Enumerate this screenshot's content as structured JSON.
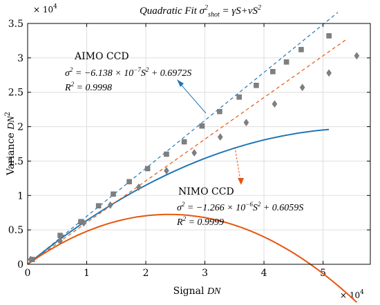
{
  "chart_data": {
    "type": "scatter",
    "title": {
      "plain": "Quadratic Fit ",
      "sigma": "σ",
      "sup": "2",
      "sub": "shot",
      "rest": " = γS+νS",
      "rest_sup": "2"
    },
    "xlabel": {
      "plain": "Signal ",
      "italic": "DN"
    },
    "ylabel": {
      "plain": "Variance ",
      "italic": "DN",
      "sup": "2"
    },
    "x_exponent": {
      "base": "× 10",
      "sup": "4"
    },
    "y_exponent": {
      "base": "× 10",
      "sup": "4"
    },
    "xlim": [
      0,
      5.8
    ],
    "ylim": [
      0,
      3.5
    ],
    "x_ticks": [
      0,
      1,
      2,
      3,
      4,
      5
    ],
    "y_ticks": [
      0,
      0.5,
      1,
      1.5,
      2,
      2.5,
      3,
      3.5
    ],
    "x_tick_labels": [
      "0",
      "1",
      "2",
      "3",
      "4",
      "5"
    ],
    "y_tick_labels": [
      "0",
      "0.5",
      "1",
      "1.5",
      "2",
      "2.5",
      "3",
      "3.5"
    ],
    "grid": true,
    "units_note": "axis values in units of 10^4",
    "series": [
      {
        "name": "AIMO CCD",
        "color": "#1f77b4",
        "marker": "square",
        "x": [
          0.08,
          0.55,
          0.9,
          1.2,
          1.45,
          1.72,
          2.03,
          2.35,
          2.65,
          2.95,
          3.25,
          3.58,
          3.87,
          4.15,
          4.38,
          4.63,
          5.1
        ],
        "y": [
          0.07,
          0.42,
          0.62,
          0.85,
          1.02,
          1.2,
          1.39,
          1.6,
          1.78,
          2.01,
          2.22,
          2.43,
          2.6,
          2.8,
          2.94,
          3.12,
          3.32
        ],
        "fit": {
          "a": -0.6138,
          "b": 0.6972,
          "x_end": 5.1,
          "dashed_x_end": 5.25
        }
      },
      {
        "name": "NIMO CCD",
        "color": "#e6550d",
        "marker": "diamond",
        "x": [
          0.05,
          0.55,
          0.95,
          1.4,
          1.88,
          2.35,
          2.82,
          3.26,
          3.7,
          4.18,
          4.65,
          5.1,
          5.57
        ],
        "y": [
          0.07,
          0.34,
          0.6,
          0.86,
          1.12,
          1.36,
          1.62,
          1.85,
          2.06,
          2.33,
          2.57,
          2.78,
          3.03
        ],
        "fit": {
          "a": -1.266,
          "b": 0.6059,
          "x_end": 5.57,
          "dashed_x_end": 5.38
        }
      }
    ],
    "annotations": [
      {
        "title": "AIMO CCD",
        "eq_lhs": "σ",
        "eq_lhs_sup": "2",
        "eq_rhs": " = −6.138 × 10",
        "eq_exp": "−7",
        "eq_tail": "S",
        "eq_tail_sup": "2",
        "eq_end": " + 0.6972S",
        "r2_lhs": "R",
        "r2_sup": "2",
        "r2_rhs": " = 0.9998"
      },
      {
        "title": "NIMO CCD",
        "eq_lhs": "σ",
        "eq_lhs_sup": "2",
        "eq_rhs": " = −1.266 × 10",
        "eq_exp": "−6",
        "eq_tail": "S",
        "eq_tail_sup": "2",
        "eq_end": " + 0.6059S",
        "r2_lhs": "R",
        "r2_sup": "2",
        "r2_rhs": " = 0.9999"
      }
    ]
  }
}
